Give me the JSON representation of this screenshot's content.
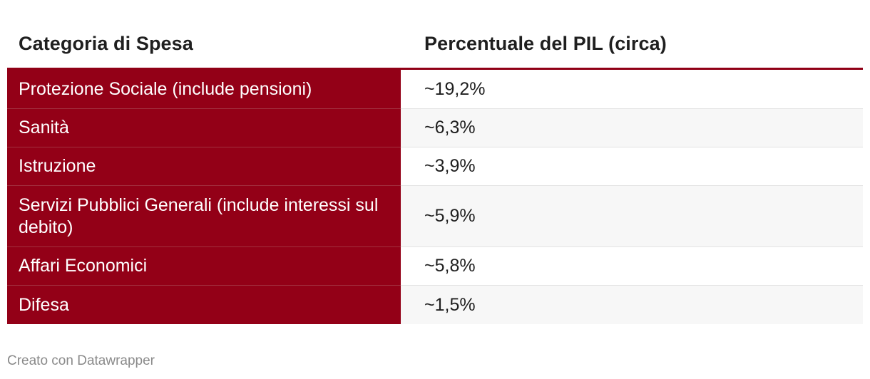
{
  "table": {
    "headers": [
      "Categoria di Spesa",
      "Percentuale del PIL (circa)"
    ],
    "rows": [
      {
        "category": "Protezione Sociale (include pensioni)",
        "value": "~19,2%"
      },
      {
        "category": "Sanità",
        "value": "~6,3%"
      },
      {
        "category": "Istruzione",
        "value": "~3,9%"
      },
      {
        "category": "Servizi Pubblici Generali (include interessi sul debito)",
        "value": "~5,9%"
      },
      {
        "category": "Affari Economici",
        "value": "~5,8%"
      },
      {
        "category": "Difesa",
        "value": "~1,5%"
      }
    ]
  },
  "chart_data": {
    "type": "table",
    "columns": [
      "Categoria di Spesa",
      "Percentuale del PIL (circa)"
    ],
    "categories": [
      "Protezione Sociale (include pensioni)",
      "Sanità",
      "Istruzione",
      "Servizi Pubblici Generali (include interessi sul debito)",
      "Affari Economici",
      "Difesa"
    ],
    "values": [
      19.2,
      6.3,
      3.9,
      5.9,
      5.8,
      1.5
    ],
    "value_labels": [
      "~19,2%",
      "~6,3%",
      "~3,9%",
      "~5,9%",
      "~5,8%",
      "~1,5%"
    ],
    "unit": "%"
  },
  "colors": {
    "category_column": "#930017",
    "header_rule": "#900016",
    "stripe": "#f7f7f7",
    "footer_text": "#8a8a8a"
  },
  "footer": {
    "credit": "Creato con Datawrapper"
  }
}
